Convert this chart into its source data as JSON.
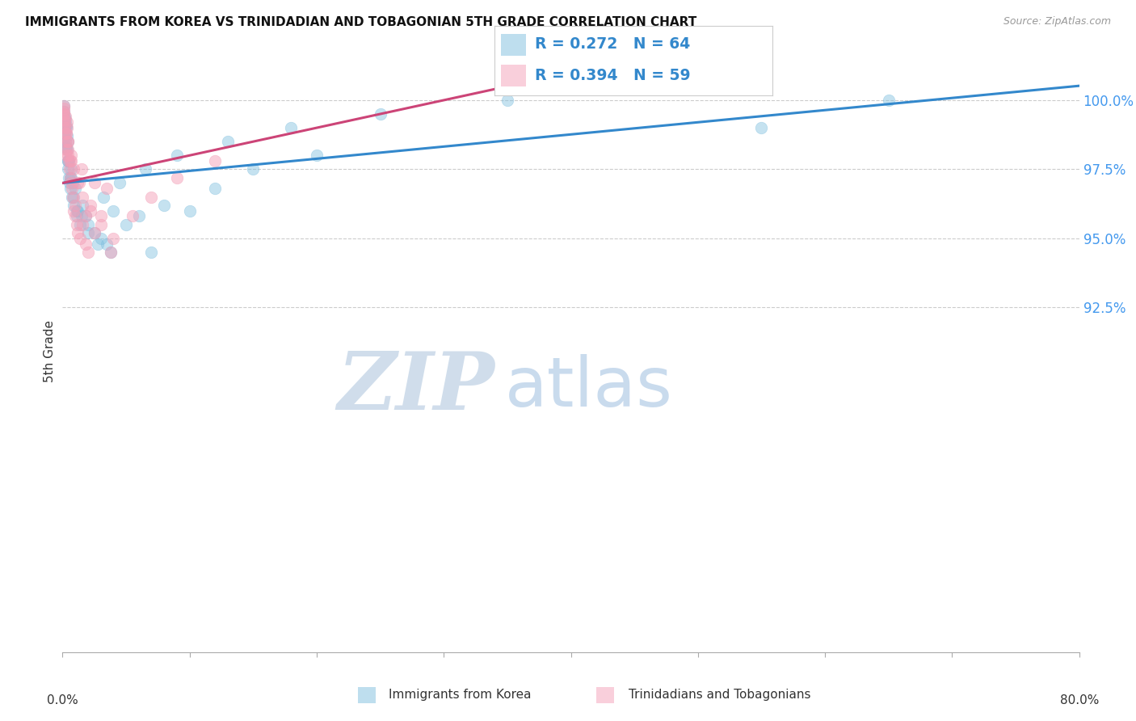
{
  "title": "IMMIGRANTS FROM KOREA VS TRINIDADIAN AND TOBAGONIAN 5TH GRADE CORRELATION CHART",
  "source": "Source: ZipAtlas.com",
  "ylabel": "5th Grade",
  "xmin": 0.0,
  "xmax": 80.0,
  "ymin": 80.0,
  "ymax": 101.8,
  "yticks": [
    92.5,
    95.0,
    97.5,
    100.0
  ],
  "blue_scatter_color": "#7fbfdf",
  "pink_scatter_color": "#f4a0b8",
  "blue_line_color": "#3388cc",
  "pink_line_color": "#cc4477",
  "axis_tick_color": "#4499ee",
  "watermark_color": "#ddeeff",
  "legend_text_color": "#3388cc",
  "korea_x": [
    0.05,
    0.08,
    0.1,
    0.12,
    0.15,
    0.18,
    0.2,
    0.22,
    0.25,
    0.28,
    0.3,
    0.32,
    0.35,
    0.38,
    0.4,
    0.42,
    0.45,
    0.48,
    0.5,
    0.55,
    0.6,
    0.65,
    0.7,
    0.75,
    0.8,
    0.9,
    1.0,
    1.1,
    1.2,
    1.4,
    1.6,
    1.8,
    2.0,
    2.5,
    3.0,
    3.5,
    4.0,
    5.0,
    6.0,
    7.0,
    8.0,
    10.0,
    12.0,
    15.0,
    20.0,
    3.2,
    4.5,
    6.5,
    9.0,
    13.0,
    18.0,
    25.0,
    35.0,
    55.0,
    65.0,
    0.15,
    0.25,
    0.4,
    0.6,
    0.85,
    1.1,
    1.5,
    2.0,
    2.8,
    3.8
  ],
  "korea_y": [
    99.5,
    99.2,
    99.8,
    99.6,
    99.4,
    99.0,
    98.8,
    99.3,
    98.5,
    99.1,
    98.3,
    99.0,
    98.7,
    98.2,
    97.8,
    98.5,
    97.5,
    97.2,
    97.8,
    97.0,
    96.8,
    97.5,
    97.2,
    96.5,
    97.0,
    96.2,
    96.8,
    95.8,
    96.0,
    95.5,
    96.2,
    95.8,
    95.5,
    95.2,
    95.0,
    94.8,
    96.0,
    95.5,
    95.8,
    94.5,
    96.2,
    96.0,
    96.8,
    97.5,
    98.0,
    96.5,
    97.0,
    97.5,
    98.0,
    98.5,
    99.0,
    99.5,
    100.0,
    99.0,
    100.0,
    98.8,
    98.3,
    97.8,
    97.2,
    96.5,
    96.0,
    95.8,
    95.2,
    94.8,
    94.5
  ],
  "trini_x": [
    0.05,
    0.08,
    0.1,
    0.12,
    0.15,
    0.18,
    0.2,
    0.22,
    0.25,
    0.28,
    0.3,
    0.32,
    0.35,
    0.38,
    0.4,
    0.45,
    0.5,
    0.55,
    0.6,
    0.65,
    0.7,
    0.75,
    0.8,
    0.9,
    1.0,
    1.1,
    1.2,
    1.4,
    1.6,
    1.8,
    2.0,
    2.5,
    3.0,
    0.1,
    0.2,
    0.3,
    0.45,
    0.65,
    0.9,
    1.2,
    1.6,
    2.2,
    3.0,
    4.0,
    5.5,
    7.0,
    9.0,
    12.0,
    1.5,
    2.5,
    3.5,
    1.0,
    1.8,
    0.4,
    0.6,
    1.3,
    2.2,
    3.8
  ],
  "trini_y": [
    99.5,
    99.8,
    99.7,
    99.5,
    99.3,
    99.0,
    98.8,
    99.4,
    98.5,
    98.2,
    98.8,
    98.0,
    99.0,
    99.2,
    98.5,
    98.0,
    97.8,
    97.5,
    97.2,
    97.8,
    97.0,
    96.8,
    96.5,
    96.0,
    95.8,
    95.5,
    95.2,
    95.0,
    95.5,
    94.8,
    94.5,
    95.2,
    95.8,
    99.6,
    99.2,
    98.8,
    98.5,
    98.0,
    97.5,
    97.0,
    96.5,
    96.0,
    95.5,
    95.0,
    95.8,
    96.5,
    97.2,
    97.8,
    97.5,
    97.0,
    96.8,
    96.2,
    95.8,
    98.2,
    97.8,
    97.0,
    96.2,
    94.5
  ]
}
